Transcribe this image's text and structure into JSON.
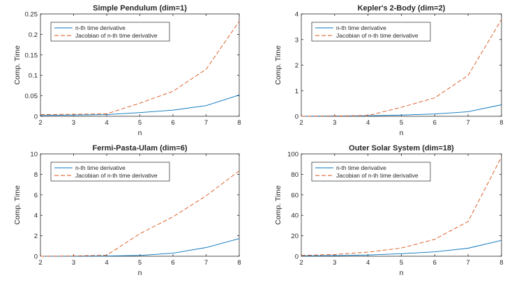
{
  "figure": {
    "series_names": [
      "n-th time derivative",
      "Jacobian of n-th time derivative"
    ]
  },
  "chart_data": [
    {
      "type": "line",
      "title": "Simple Pendulum  (dim=1)",
      "xlabel": "n",
      "ylabel": "Comp. Time",
      "x": [
        2,
        3,
        4,
        5,
        6,
        7,
        8
      ],
      "xlim": [
        2,
        8
      ],
      "ylim": [
        0,
        0.25
      ],
      "xticks": [
        "2",
        "3",
        "4",
        "5",
        "6",
        "7",
        "8"
      ],
      "yticks": [
        "0",
        "0.05",
        "0.1",
        "0.15",
        "0.2",
        "0.25"
      ],
      "yticks_values": [
        0,
        0.05,
        0.1,
        0.15,
        0.2,
        0.25
      ],
      "legend": "top-left",
      "series": [
        {
          "name": "n-th time derivative",
          "color": "#0072BD",
          "style": "solid",
          "values": [
            0.002,
            0.003,
            0.004,
            0.009,
            0.015,
            0.026,
            0.052
          ]
        },
        {
          "name": "Jacobian of n-th time derivative",
          "color": "#D95319",
          "style": "dashed",
          "values": [
            0.004,
            0.005,
            0.006,
            0.032,
            0.061,
            0.115,
            0.232
          ]
        }
      ]
    },
    {
      "type": "line",
      "title": "Kepler's 2-Body  (dim=2)",
      "xlabel": "n",
      "ylabel": "Comp. Time",
      "x": [
        2,
        3,
        4,
        5,
        6,
        7,
        8
      ],
      "xlim": [
        2,
        8
      ],
      "ylim": [
        0,
        4
      ],
      "xticks": [
        "2",
        "3",
        "4",
        "5",
        "6",
        "7",
        "8"
      ],
      "yticks": [
        "0",
        "1",
        "2",
        "3",
        "4"
      ],
      "yticks_values": [
        0,
        1,
        2,
        3,
        4
      ],
      "legend": "top-left",
      "series": [
        {
          "name": "n-th time derivative",
          "color": "#0072BD",
          "style": "solid",
          "values": [
            0.0,
            0.01,
            0.02,
            0.05,
            0.09,
            0.18,
            0.45
          ]
        },
        {
          "name": "Jacobian of n-th time derivative",
          "color": "#D95319",
          "style": "dashed",
          "values": [
            0.0,
            0.01,
            0.03,
            0.35,
            0.72,
            1.6,
            3.78
          ]
        }
      ]
    },
    {
      "type": "line",
      "title": "Fermi-Pasta-Ulam  (dim=6)",
      "xlabel": "n",
      "ylabel": "Comp. Time",
      "x": [
        2,
        3,
        4,
        5,
        6,
        7,
        8
      ],
      "xlim": [
        2,
        8
      ],
      "ylim": [
        0,
        10
      ],
      "xticks": [
        "2",
        "3",
        "4",
        "5",
        "6",
        "7",
        "8"
      ],
      "yticks": [
        "0",
        "2",
        "4",
        "6",
        "8",
        "10"
      ],
      "yticks_values": [
        0,
        2,
        4,
        6,
        8,
        10
      ],
      "legend": "top-left",
      "series": [
        {
          "name": "n-th time derivative",
          "color": "#0072BD",
          "style": "solid",
          "values": [
            0.0,
            0.01,
            0.02,
            0.08,
            0.3,
            0.85,
            1.72
          ]
        },
        {
          "name": "Jacobian of n-th time derivative",
          "color": "#D95319",
          "style": "dashed",
          "values": [
            0.0,
            0.03,
            0.1,
            2.2,
            3.85,
            5.9,
            8.35
          ]
        }
      ]
    },
    {
      "type": "line",
      "title": "Outer Solar System  (dim=18)",
      "xlabel": "n",
      "ylabel": "Comp. Time",
      "x": [
        2,
        3,
        4,
        5,
        6,
        7,
        8
      ],
      "xlim": [
        2,
        8
      ],
      "ylim": [
        0,
        100
      ],
      "xticks": [
        "2",
        "3",
        "4",
        "5",
        "6",
        "7",
        "8"
      ],
      "yticks": [
        "0",
        "20",
        "40",
        "60",
        "80",
        "100"
      ],
      "yticks_values": [
        0,
        20,
        40,
        60,
        80,
        100
      ],
      "legend": "top-left",
      "series": [
        {
          "name": "n-th time derivative",
          "color": "#0072BD",
          "style": "solid",
          "values": [
            0.3,
            0.6,
            1.2,
            2.5,
            4.3,
            7.8,
            15.5
          ]
        },
        {
          "name": "Jacobian of n-th time derivative",
          "color": "#D95319",
          "style": "dashed",
          "values": [
            0.8,
            1.8,
            4.0,
            8.0,
            16.5,
            34.0,
            97.0
          ]
        }
      ]
    }
  ]
}
